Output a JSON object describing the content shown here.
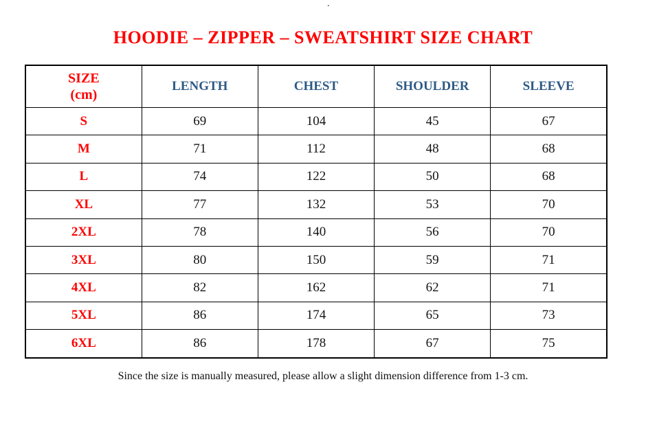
{
  "page": {
    "stray_dot": ".",
    "title": "HOODIE – ZIPPER – SWEATSHIRT SIZE CHART",
    "footnote": "Since the size is manually measured, please allow a slight dimension difference from 1-3 cm."
  },
  "colors": {
    "title_red": "#FE0000",
    "size_label_red": "#FE0000",
    "header_blue": "#2D5986",
    "cell_text": "#141414",
    "table_border": "#000000",
    "background": "#FFFFFF"
  },
  "table": {
    "header": {
      "size": "SIZE\n(cm)",
      "length": "LENGTH",
      "chest": "CHEST",
      "shoulder": "SHOULDER",
      "sleeve": "SLEEVE"
    },
    "rows": [
      {
        "size": "S",
        "length": "69",
        "chest": "104",
        "shoulder": "45",
        "sleeve": "67"
      },
      {
        "size": "M",
        "length": "71",
        "chest": "112",
        "shoulder": "48",
        "sleeve": "68"
      },
      {
        "size": "L",
        "length": "74",
        "chest": "122",
        "shoulder": "50",
        "sleeve": "68"
      },
      {
        "size": "XL",
        "length": "77",
        "chest": "132",
        "shoulder": "53",
        "sleeve": "70"
      },
      {
        "size": "2XL",
        "length": "78",
        "chest": "140",
        "shoulder": "56",
        "sleeve": "70"
      },
      {
        "size": "3XL",
        "length": "80",
        "chest": "150",
        "shoulder": "59",
        "sleeve": "71"
      },
      {
        "size": "4XL",
        "length": "82",
        "chest": "162",
        "shoulder": "62",
        "sleeve": "71"
      },
      {
        "size": "5XL",
        "length": "86",
        "chest": "174",
        "shoulder": "65",
        "sleeve": "73"
      },
      {
        "size": "6XL",
        "length": "86",
        "chest": "178",
        "shoulder": "67",
        "sleeve": "75"
      }
    ]
  },
  "chart_data": {
    "type": "table",
    "title": "HOODIE – ZIPPER – SWEATSHIRT SIZE CHART",
    "columns": [
      "SIZE (cm)",
      "LENGTH",
      "CHEST",
      "SHOULDER",
      "SLEEVE"
    ],
    "rows": [
      [
        "S",
        69,
        104,
        45,
        67
      ],
      [
        "M",
        71,
        112,
        48,
        68
      ],
      [
        "L",
        74,
        122,
        50,
        68
      ],
      [
        "XL",
        77,
        132,
        53,
        70
      ],
      [
        "2XL",
        78,
        140,
        56,
        70
      ],
      [
        "3XL",
        80,
        150,
        59,
        71
      ],
      [
        "4XL",
        82,
        162,
        62,
        71
      ],
      [
        "5XL",
        86,
        174,
        65,
        73
      ],
      [
        "6XL",
        86,
        178,
        67,
        75
      ]
    ],
    "note": "Since the size is manually measured, please allow a slight dimension difference from 1-3 cm."
  }
}
